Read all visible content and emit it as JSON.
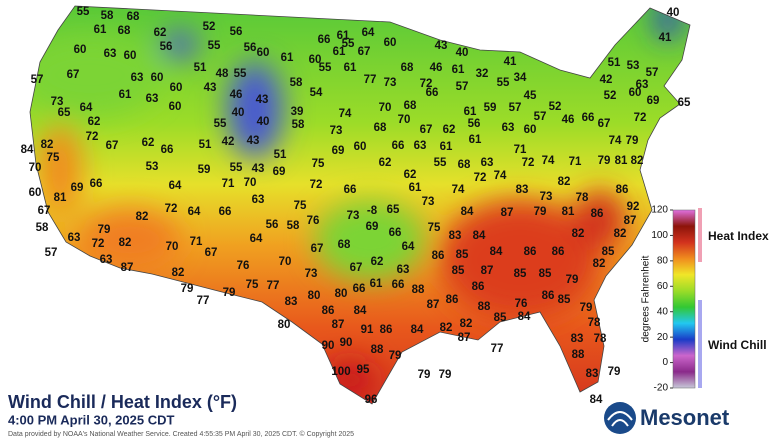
{
  "map": {
    "title": "Wind Chill / Heat Index (°F)",
    "subtitle": "4:00 PM April 30, 2025 CDT",
    "credit": "Data provided by NOAA's National Weather Service. Created 4:55:35 PM April 30, 2025 CDT. © Copyright 2025",
    "logo": "Mesonet",
    "colorbar": {
      "label": "degrees Fahrenheit",
      "lim": [
        -20,
        120
      ],
      "ticks": [
        120,
        100,
        80,
        60,
        40,
        20,
        0,
        -20
      ],
      "colors": [
        "#c8c8d8",
        "#8a2a8a",
        "#cc66cc",
        "#1a3cc8",
        "#22c8f0",
        "#33c833",
        "#9cdc28",
        "#f0e628",
        "#f08c1e",
        "#d2321e",
        "#8c140a",
        "#e070e0"
      ],
      "heat_label": "Heat Index",
      "chill_label": "Wind Chill"
    },
    "stations": [
      55,
      58,
      68,
      52,
      56,
      61,
      68,
      62,
      60,
      63,
      60,
      56,
      55,
      56,
      60,
      61,
      66,
      61,
      64,
      55,
      60,
      61,
      67,
      60,
      43,
      40,
      40,
      41,
      57,
      67,
      63,
      60,
      51,
      48,
      55,
      58,
      55,
      61,
      77,
      73,
      68,
      72,
      46,
      61,
      32,
      41,
      34,
      51,
      53,
      42,
      57,
      63,
      52,
      60,
      69,
      65,
      73,
      64,
      61,
      63,
      60,
      43,
      46,
      43,
      60,
      54,
      74,
      70,
      68,
      66,
      57,
      55,
      57,
      45,
      52,
      61,
      59,
      84,
      72,
      65,
      62,
      55,
      40,
      40,
      39,
      58,
      73,
      68,
      70,
      67,
      62,
      56,
      61,
      63,
      60,
      57,
      46,
      66,
      67,
      72,
      74,
      79,
      82,
      75,
      67,
      62,
      66,
      51,
      42,
      43,
      51,
      69,
      60,
      62,
      66,
      63,
      61,
      55,
      68,
      63,
      71,
      72,
      74,
      71,
      79,
      81,
      82,
      70,
      81,
      60,
      69,
      66,
      53,
      64,
      59,
      71,
      70,
      55,
      43,
      69,
      75,
      72,
      66,
      62,
      61,
      74,
      72,
      74,
      83,
      73,
      82,
      86,
      67,
      58,
      63,
      57,
      79,
      72,
      82,
      63,
      82,
      72,
      64,
      66,
      63,
      56,
      75,
      76,
      73,
      -8,
      65,
      73,
      84,
      87,
      79,
      81,
      78,
      92,
      87,
      86,
      70,
      71,
      67,
      64,
      58,
      67,
      68,
      69,
      66,
      64,
      75,
      83,
      84,
      82,
      82,
      85,
      87,
      82,
      79,
      77,
      76,
      70,
      73,
      67,
      62,
      63,
      86,
      85,
      84,
      86,
      86,
      82,
      79,
      75,
      77,
      83,
      80,
      80,
      66,
      61,
      66,
      88,
      85,
      87,
      86,
      85,
      85,
      79,
      80,
      86,
      84,
      87,
      91,
      86,
      84,
      87,
      86,
      88,
      85,
      84,
      76,
      86,
      85,
      79,
      82,
      82,
      87,
      77,
      90,
      90,
      88,
      79,
      78,
      83,
      78,
      88,
      79,
      79,
      100,
      95,
      96,
      83,
      79,
      84
    ]
  }
}
